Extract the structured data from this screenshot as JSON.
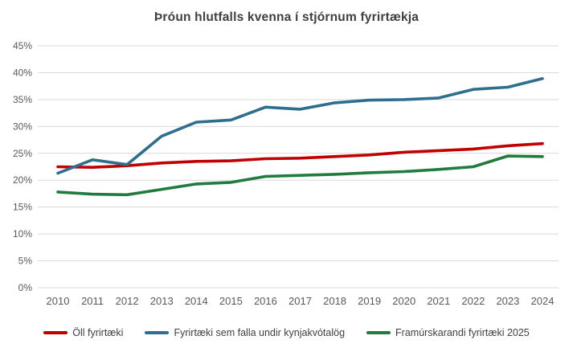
{
  "title": "Þróun hlutfalls kvenna í stjórnum fyrirtækja",
  "chart_data": {
    "type": "line",
    "x": [
      "2010",
      "2011",
      "2012",
      "2013",
      "2014",
      "2015",
      "2016",
      "2017",
      "2018",
      "2019",
      "2020",
      "2021",
      "2022",
      "2023",
      "2024"
    ],
    "xlabel": "",
    "ylabel": "",
    "ylim": [
      0,
      45
    ],
    "ytick_step": 5,
    "ytick_suffix": "%",
    "grid": "horizontal",
    "grid_color": "#d9d9d9",
    "legend_position": "bottom",
    "series": [
      {
        "id": "oll-fyrirtaeki",
        "name": "Öll fyrirtæki",
        "color": "#c00000",
        "values": [
          22.5,
          22.4,
          22.7,
          23.2,
          23.5,
          23.6,
          24.0,
          24.1,
          24.4,
          24.7,
          25.2,
          25.5,
          25.8,
          26.4,
          26.8
        ]
      },
      {
        "id": "kynjakvotalog-fyrirtaeki",
        "name": "Fyrirtæki sem falla undir kynjakvótalög",
        "color": "#2e6f8e",
        "values": [
          21.3,
          23.8,
          22.9,
          28.2,
          30.8,
          31.2,
          33.6,
          33.2,
          34.4,
          34.9,
          35.0,
          35.3,
          36.9,
          37.3,
          38.9
        ]
      },
      {
        "id": "framurskarandi-fyrirtaeki",
        "name": "Framúrskarandi fyrirtæki 2025",
        "color": "#217a3e",
        "values": [
          17.8,
          17.4,
          17.3,
          18.3,
          19.3,
          19.6,
          20.7,
          20.9,
          21.1,
          21.4,
          21.6,
          22.0,
          22.5,
          24.5,
          24.4
        ]
      }
    ]
  }
}
